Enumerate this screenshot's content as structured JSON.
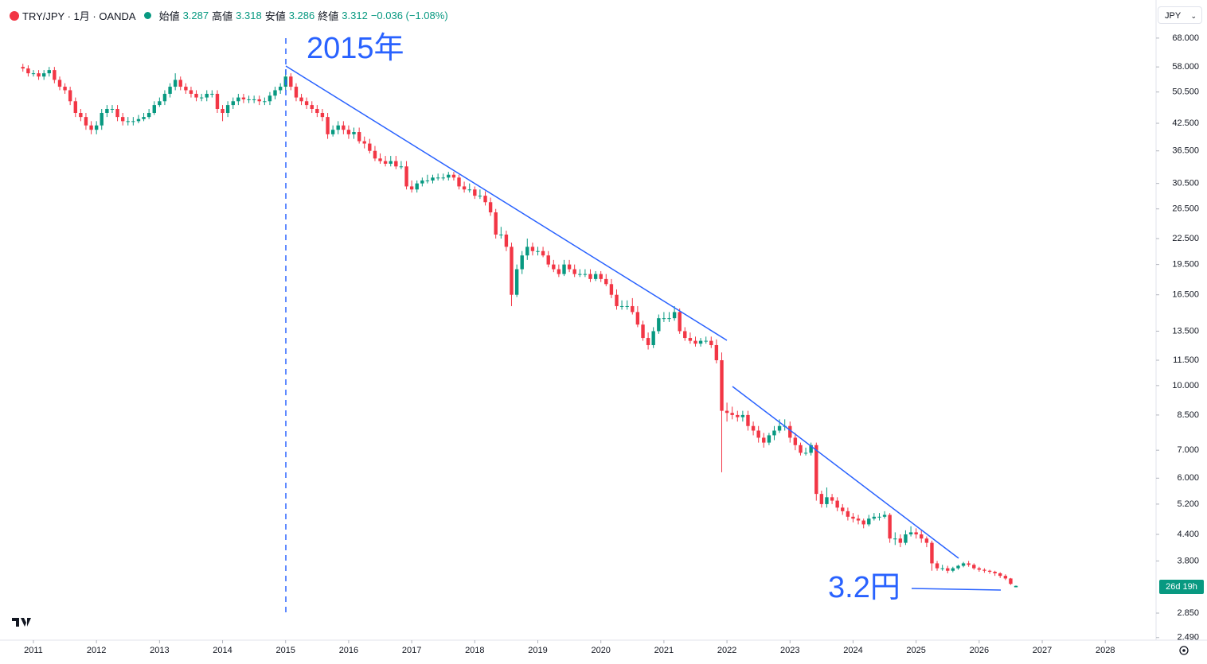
{
  "header": {
    "symbol": "TRY/JPY · 1月 · OANDA",
    "open_label": "始値",
    "open": 3.287,
    "high_label": "高値",
    "high": 3.318,
    "low_label": "安値",
    "low": 3.286,
    "close_label": "終値",
    "close": 3.312,
    "change": "−0.036 (−1.08%)",
    "currency": "JPY",
    "countdown": "26d 19h"
  },
  "chart_data": {
    "type": "candlestick",
    "log_y": true,
    "up_color": "#089981",
    "down_color": "#f23645",
    "annotations": [
      "2015年",
      "3.2円"
    ],
    "xlim": [
      2010.47,
      2028.78
    ],
    "xticks": [
      2011,
      2012,
      2013,
      2014,
      2015,
      2016,
      2017,
      2018,
      2019,
      2020,
      2021,
      2022,
      2023,
      2024,
      2025,
      2026,
      2027,
      2028
    ],
    "ylim": [
      2.455,
      83.9
    ],
    "yticks": [
      {
        "value": 68,
        "label": "68.000"
      },
      {
        "value": 58,
        "label": "58.000"
      },
      {
        "value": 50.5,
        "label": "50.500"
      },
      {
        "value": 42.5,
        "label": "42.500"
      },
      {
        "value": 36.5,
        "label": "36.500"
      },
      {
        "value": 30.5,
        "label": "30.500"
      },
      {
        "value": 26.5,
        "label": "26.500"
      },
      {
        "value": 22.5,
        "label": "22.500"
      },
      {
        "value": 19.5,
        "label": "19.500"
      },
      {
        "value": 16.5,
        "label": "16.500"
      },
      {
        "value": 13.5,
        "label": "13.500"
      },
      {
        "value": 11.5,
        "label": "11.500"
      },
      {
        "value": 10,
        "label": "10.000"
      },
      {
        "value": 8.5,
        "label": "8.500"
      },
      {
        "value": 7,
        "label": "7.000"
      },
      {
        "value": 6,
        "label": "6.000"
      },
      {
        "value": 5.2,
        "label": "5.200"
      },
      {
        "value": 4.4,
        "label": "4.400"
      },
      {
        "value": 3.8,
        "label": "3.800"
      },
      {
        "value": 2.85,
        "label": "2.850"
      },
      {
        "value": 2.49,
        "label": "2.490"
      }
    ],
    "x": [
      2010.833,
      2010.917,
      2011,
      2011.083,
      2011.167,
      2011.25,
      2011.333,
      2011.417,
      2011.5,
      2011.583,
      2011.667,
      2011.75,
      2011.833,
      2011.917,
      2012,
      2012.083,
      2012.167,
      2012.25,
      2012.333,
      2012.417,
      2012.5,
      2012.583,
      2012.667,
      2012.75,
      2012.833,
      2012.917,
      2013,
      2013.083,
      2013.167,
      2013.25,
      2013.333,
      2013.417,
      2013.5,
      2013.583,
      2013.667,
      2013.75,
      2013.833,
      2013.917,
      2014,
      2014.083,
      2014.167,
      2014.25,
      2014.333,
      2014.417,
      2014.5,
      2014.583,
      2014.667,
      2014.75,
      2014.833,
      2014.917,
      2015,
      2015.083,
      2015.167,
      2015.25,
      2015.333,
      2015.417,
      2015.5,
      2015.583,
      2015.667,
      2015.75,
      2015.833,
      2015.917,
      2016,
      2016.083,
      2016.167,
      2016.25,
      2016.333,
      2016.417,
      2016.5,
      2016.583,
      2016.667,
      2016.75,
      2016.833,
      2016.917,
      2017,
      2017.083,
      2017.167,
      2017.25,
      2017.333,
      2017.417,
      2017.5,
      2017.583,
      2017.667,
      2017.75,
      2017.833,
      2017.917,
      2018,
      2018.083,
      2018.167,
      2018.25,
      2018.333,
      2018.417,
      2018.5,
      2018.583,
      2018.667,
      2018.75,
      2018.833,
      2018.917,
      2019,
      2019.083,
      2019.167,
      2019.25,
      2019.333,
      2019.417,
      2019.5,
      2019.583,
      2019.667,
      2019.75,
      2019.833,
      2019.917,
      2020,
      2020.083,
      2020.167,
      2020.25,
      2020.333,
      2020.417,
      2020.5,
      2020.583,
      2020.667,
      2020.75,
      2020.833,
      2020.917,
      2021,
      2021.083,
      2021.167,
      2021.25,
      2021.333,
      2021.417,
      2021.5,
      2021.583,
      2021.667,
      2021.75,
      2021.833,
      2021.917,
      2022,
      2022.083,
      2022.167,
      2022.25,
      2022.333,
      2022.417,
      2022.5,
      2022.583,
      2022.667,
      2022.75,
      2022.833,
      2022.917,
      2023,
      2023.083,
      2023.167,
      2023.25,
      2023.333,
      2023.417,
      2023.5,
      2023.583,
      2023.667,
      2023.75,
      2023.833,
      2023.917,
      2024,
      2024.083,
      2024.167,
      2024.25,
      2024.333,
      2024.417,
      2024.5,
      2024.583,
      2024.667,
      2024.75,
      2024.833,
      2024.917,
      2025,
      2025.083,
      2025.167,
      2025.25,
      2025.333,
      2025.417,
      2025.5,
      2025.583,
      2025.667,
      2025.75,
      2025.833,
      2025.917,
      2026,
      2026.083,
      2026.167,
      2026.25,
      2026.333,
      2026.417,
      2026.5,
      2026.583
    ],
    "open": [
      58,
      57.5,
      56,
      56,
      55,
      56,
      57,
      54,
      52,
      51,
      48,
      45,
      44,
      42,
      41,
      42,
      45,
      46,
      46,
      44,
      43,
      43,
      43,
      43.5,
      44,
      45,
      47,
      48,
      50,
      52,
      54,
      52,
      51,
      50,
      49,
      49,
      50,
      50,
      46,
      45,
      47,
      48,
      49,
      48.5,
      48.5,
      48.5,
      48,
      48,
      49.5,
      51,
      52,
      55,
      52,
      49,
      48,
      47,
      46,
      45,
      44,
      40,
      41,
      42,
      41,
      40,
      40.5,
      38.5,
      38,
      36.5,
      35,
      34.5,
      34,
      34.5,
      33.5,
      33.5,
      30,
      29.5,
      30.5,
      31,
      31,
      31.5,
      31.5,
      31.5,
      32,
      31.5,
      30,
      29.5,
      29.5,
      28.5,
      28.5,
      27.5,
      26,
      23,
      23,
      21.5,
      16.5,
      19,
      20.5,
      21.5,
      21,
      21,
      20.5,
      19.5,
      19,
      18.5,
      19.5,
      19,
      18.5,
      18.5,
      18.5,
      18,
      18.5,
      18,
      17.5,
      16.5,
      15.5,
      15.5,
      15.5,
      15,
      14,
      13,
      12.5,
      13.5,
      14.5,
      14.5,
      14.5,
      15,
      13.5,
      13,
      12.8,
      12.6,
      12.8,
      12.8,
      12.5,
      11.5,
      8.7,
      8.6,
      8.5,
      8.4,
      8.5,
      8.0,
      7.8,
      7.5,
      7.3,
      7.6,
      7.8,
      8.0,
      8.0,
      7.5,
      7.2,
      6.9,
      6.9,
      7.2,
      5.5,
      5.2,
      5.4,
      5.3,
      5.1,
      5.0,
      4.85,
      4.8,
      4.75,
      4.65,
      4.8,
      4.85,
      4.85,
      4.9,
      4.3,
      4.3,
      4.2,
      4.4,
      4.45,
      4.4,
      4.3,
      4.2,
      3.75,
      3.65,
      3.65,
      3.6,
      3.65,
      3.7,
      3.75,
      3.72,
      3.65,
      3.62,
      3.6,
      3.58,
      3.55,
      3.5,
      3.45,
      3.287
    ],
    "high": [
      59,
      58.5,
      57,
      57,
      57,
      58,
      58,
      55,
      53,
      52,
      49,
      46,
      45,
      43,
      43,
      46,
      47,
      47,
      47,
      45,
      44,
      44,
      44.5,
      45,
      46,
      48,
      49,
      51,
      53,
      56,
      55,
      53,
      52,
      51,
      50,
      51,
      51,
      51,
      47,
      48,
      49,
      50,
      50,
      49.5,
      49.5,
      49.5,
      49,
      50.5,
      52,
      53,
      57,
      56,
      53,
      50,
      49,
      48,
      47,
      46,
      45,
      42,
      43,
      43,
      42,
      41.5,
      41.5,
      39.5,
      39,
      37.5,
      36,
      35.5,
      35.5,
      35.5,
      34.5,
      34.5,
      31,
      31,
      31.5,
      32,
      32,
      32.2,
      32.2,
      32.5,
      32.5,
      32,
      30.8,
      30.5,
      30,
      29.5,
      29.2,
      28.2,
      26.5,
      24,
      23.5,
      22,
      19.5,
      21,
      22.5,
      22,
      21.5,
      21.5,
      21,
      20,
      19.5,
      20,
      20,
      19.5,
      19,
      19,
      19,
      18.8,
      18.8,
      18.5,
      18,
      17,
      16,
      16,
      16.2,
      15.5,
      14.3,
      13.4,
      13.8,
      14.8,
      15,
      15,
      15.5,
      15.3,
      13.8,
      13.4,
      13.1,
      13,
      13.1,
      13.1,
      12.9,
      12,
      9.1,
      8.9,
      8.7,
      8.7,
      8.7,
      8.2,
      8.0,
      7.7,
      7.7,
      8.0,
      8.3,
      8.3,
      8.2,
      7.7,
      7.3,
      7.1,
      7.3,
      7.3,
      5.6,
      5.7,
      5.5,
      5.4,
      5.2,
      5.1,
      4.95,
      4.9,
      4.8,
      4.9,
      4.95,
      4.95,
      5.0,
      4.95,
      4.45,
      4.4,
      4.5,
      4.6,
      4.55,
      4.5,
      4.35,
      4.25,
      3.8,
      3.72,
      3.7,
      3.68,
      3.72,
      3.78,
      3.8,
      3.75,
      3.68,
      3.65,
      3.62,
      3.6,
      3.57,
      3.53,
      3.46,
      3.318
    ],
    "low": [
      56.5,
      55,
      55,
      54,
      54,
      55,
      53,
      51,
      50,
      47,
      44,
      43,
      41,
      40,
      40,
      41,
      44,
      45,
      43,
      42,
      42,
      42,
      42.5,
      43,
      43.5,
      44.5,
      46.5,
      47,
      49,
      51,
      51,
      50,
      49,
      48,
      48,
      48,
      49,
      45,
      43,
      44,
      46,
      47,
      47.5,
      47.5,
      47.5,
      47,
      47,
      47,
      48.5,
      50,
      51,
      51,
      48,
      47,
      46,
      45,
      44,
      43,
      39,
      39.5,
      40,
      40,
      39,
      39,
      38,
      37,
      36,
      34.5,
      34,
      33.5,
      33.5,
      33,
      33,
      29.5,
      29,
      29,
      30,
      30.5,
      30.5,
      31,
      31,
      31,
      31,
      29.5,
      29,
      29,
      28,
      28,
      27,
      25.5,
      22.5,
      22.5,
      21,
      15.5,
      16.3,
      18.5,
      20,
      20.5,
      20.5,
      20.3,
      19.2,
      18.7,
      18.2,
      18.3,
      18.7,
      18.2,
      18.2,
      18.2,
      17.7,
      17.8,
      17.7,
      17.3,
      16.2,
      15.2,
      15.2,
      15.2,
      14.8,
      13.8,
      12.8,
      12.2,
      12.3,
      13.3,
      14.2,
      14.2,
      14.3,
      13.3,
      12.8,
      12.6,
      12.4,
      12.4,
      12.6,
      12.3,
      11.3,
      6.2,
      8.2,
      8.3,
      8.2,
      8.2,
      7.8,
      7.6,
      7.3,
      7.1,
      7.2,
      7.4,
      7.7,
      7.8,
      7.3,
      7.0,
      6.8,
      6.8,
      6.8,
      5.3,
      5.1,
      5.1,
      5.2,
      5.0,
      4.9,
      4.75,
      4.7,
      4.65,
      4.55,
      4.6,
      4.75,
      4.75,
      4.8,
      4.2,
      4.15,
      4.1,
      4.15,
      4.35,
      4.3,
      4.2,
      4.1,
      3.6,
      3.6,
      3.6,
      3.55,
      3.57,
      3.62,
      3.67,
      3.68,
      3.62,
      3.58,
      3.56,
      3.54,
      3.5,
      3.46,
      3.42,
      3.33,
      3.286
    ],
    "close": [
      57.5,
      56,
      56,
      55,
      56,
      57,
      54,
      52,
      51,
      48,
      45,
      44,
      42,
      41,
      42,
      45,
      46,
      46,
      44,
      43,
      43,
      43,
      43.5,
      44,
      45,
      47,
      48,
      50,
      52,
      54,
      52,
      51,
      50,
      49,
      49,
      50,
      50,
      46,
      45,
      47,
      48,
      49,
      48.5,
      48.5,
      48.5,
      48,
      48,
      49.5,
      51,
      52,
      55,
      52,
      49,
      48,
      47,
      46,
      45,
      44,
      40,
      41,
      42,
      41,
      40,
      40.5,
      38.5,
      38,
      36.5,
      35,
      34.5,
      34,
      34.5,
      33.5,
      33.5,
      30,
      29.5,
      30.5,
      31,
      31,
      31.5,
      31.5,
      31.5,
      32,
      31.5,
      30,
      29.5,
      29.5,
      28.5,
      28.5,
      27.5,
      26,
      23,
      23,
      21.5,
      16.5,
      19,
      20.5,
      21.5,
      21,
      21,
      20.5,
      19.5,
      19,
      18.5,
      19.5,
      19,
      18.5,
      18.5,
      18.5,
      18,
      18.5,
      18,
      17.5,
      16.5,
      15.5,
      15.5,
      15.5,
      15,
      14,
      13,
      12.5,
      13.5,
      14.5,
      14.5,
      14.5,
      15,
      13.5,
      13,
      12.8,
      12.6,
      12.8,
      12.8,
      12.5,
      11.5,
      8.7,
      8.6,
      8.5,
      8.4,
      8.5,
      8.0,
      7.8,
      7.5,
      7.3,
      7.6,
      7.8,
      8.0,
      8.0,
      7.5,
      7.2,
      6.9,
      6.9,
      7.2,
      5.5,
      5.2,
      5.4,
      5.3,
      5.1,
      5.0,
      4.85,
      4.8,
      4.75,
      4.65,
      4.8,
      4.85,
      4.85,
      4.9,
      4.3,
      4.3,
      4.2,
      4.4,
      4.45,
      4.4,
      4.3,
      4.2,
      3.75,
      3.65,
      3.65,
      3.6,
      3.65,
      3.7,
      3.75,
      3.72,
      3.65,
      3.62,
      3.6,
      3.58,
      3.55,
      3.5,
      3.45,
      3.348,
      3.312
    ]
  }
}
